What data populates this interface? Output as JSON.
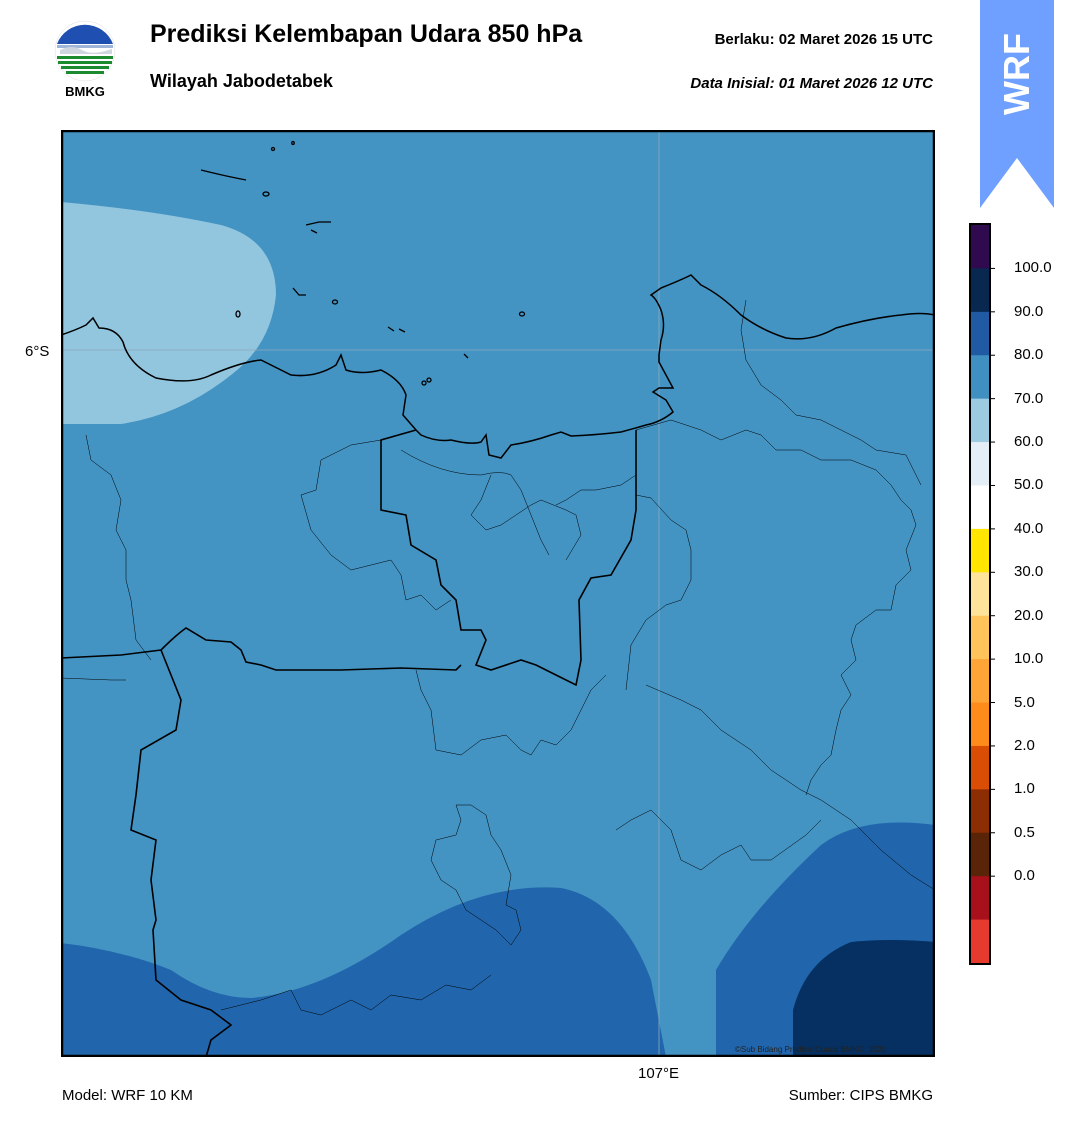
{
  "header": {
    "title": "Prediksi Kelembapan Udara 850 hPa",
    "subtitle": "Wilayah Jabodetabek",
    "valid_time": "Berlaku:  02 Maret 2026 15 UTC",
    "initial_data": "Data Inisial:  01 Maret 2026 12 UTC"
  },
  "logo": {
    "text": "BMKG",
    "icon": "bmkg-logo"
  },
  "wrf_badge": {
    "text": "WRF",
    "color": "#6fa0ff"
  },
  "map": {
    "lat_label": "6°S",
    "lon_label": "107°E",
    "credit": "©Sub Bidang Prediksi Cuaca BMKG, 2020"
  },
  "footer": {
    "model": "Model: WRF 10 KM",
    "source": "Sumber: CIPS BMKG"
  },
  "colorbar": {
    "levels": [
      "100.0",
      "90.0",
      "80.0",
      "70.0",
      "60.0",
      "50.0",
      "40.0",
      "30.0",
      "20.0",
      "10.0",
      "5.0",
      "2.0",
      "1.0",
      "0.5",
      "0.0"
    ],
    "colors": [
      "#2f0a4e",
      "#08284f",
      "#1f5aa3",
      "#3f8fc1",
      "#9ccae1",
      "#e3eef7",
      "#ffffff",
      "#ffe500",
      "#ffe39a",
      "#ffc55a",
      "#ffa538",
      "#ff8c1a",
      "#d94e04",
      "#8c2d04",
      "#5a2408",
      "#a8101c",
      "#e63a2e"
    ]
  },
  "humidity_field": {
    "base_color": "#4393c3",
    "regions": [
      {
        "name": "60-70",
        "color": "#92c5de"
      },
      {
        "name": "80-90",
        "color": "#2166ac"
      },
      {
        "name": "90-100",
        "color": "#053061"
      }
    ]
  }
}
